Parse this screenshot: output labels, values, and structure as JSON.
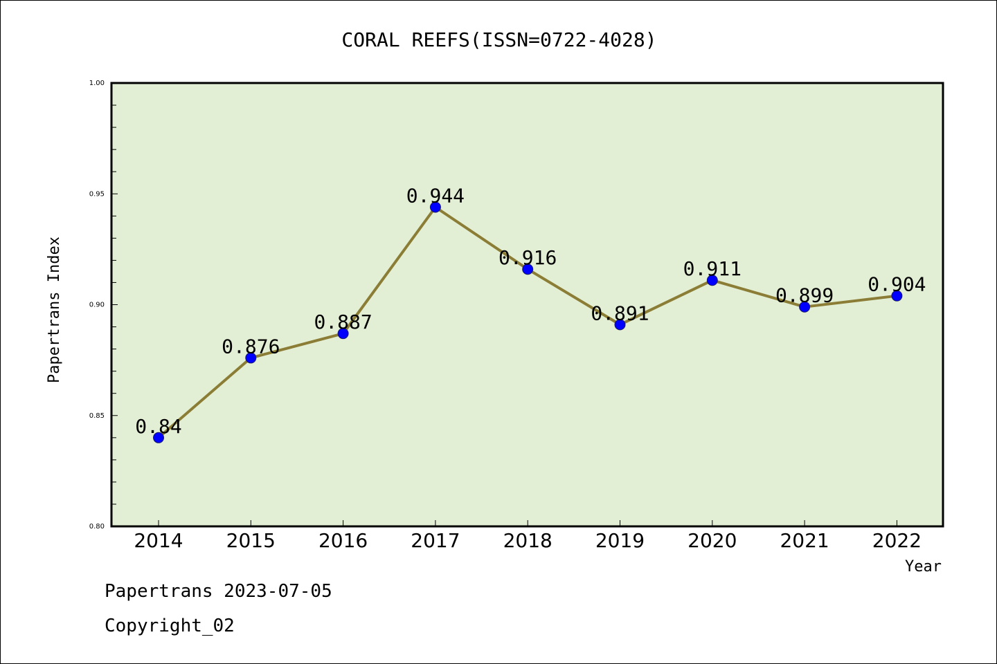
{
  "chart_data": {
    "type": "line",
    "title": "CORAL REEFS(ISSN=0722-4028)",
    "xlabel": "Year",
    "ylabel": "Papertrans Index",
    "categories": [
      "2014",
      "2015",
      "2016",
      "2017",
      "2018",
      "2019",
      "2020",
      "2021",
      "2022"
    ],
    "series": [
      {
        "values": [
          0.84,
          0.876,
          0.887,
          0.944,
          0.916,
          0.891,
          0.911,
          0.899,
          0.904
        ]
      }
    ],
    "data_labels": [
      "0.84",
      "0.876",
      "0.887",
      "0.944",
      "0.916",
      "0.891",
      "0.911",
      "0.899",
      "0.904"
    ],
    "ylim": [
      0.8,
      1.0
    ],
    "yticks": [
      "0.80",
      "0.85",
      "0.90",
      "0.95",
      "1.00"
    ],
    "grid": false,
    "colors": {
      "plot_background": "#e2efd4",
      "line": "#8b7d35",
      "marker": "#0000ff"
    }
  },
  "footer": {
    "line1": "Papertrans 2023-07-05",
    "line2": "Copyright_02"
  }
}
